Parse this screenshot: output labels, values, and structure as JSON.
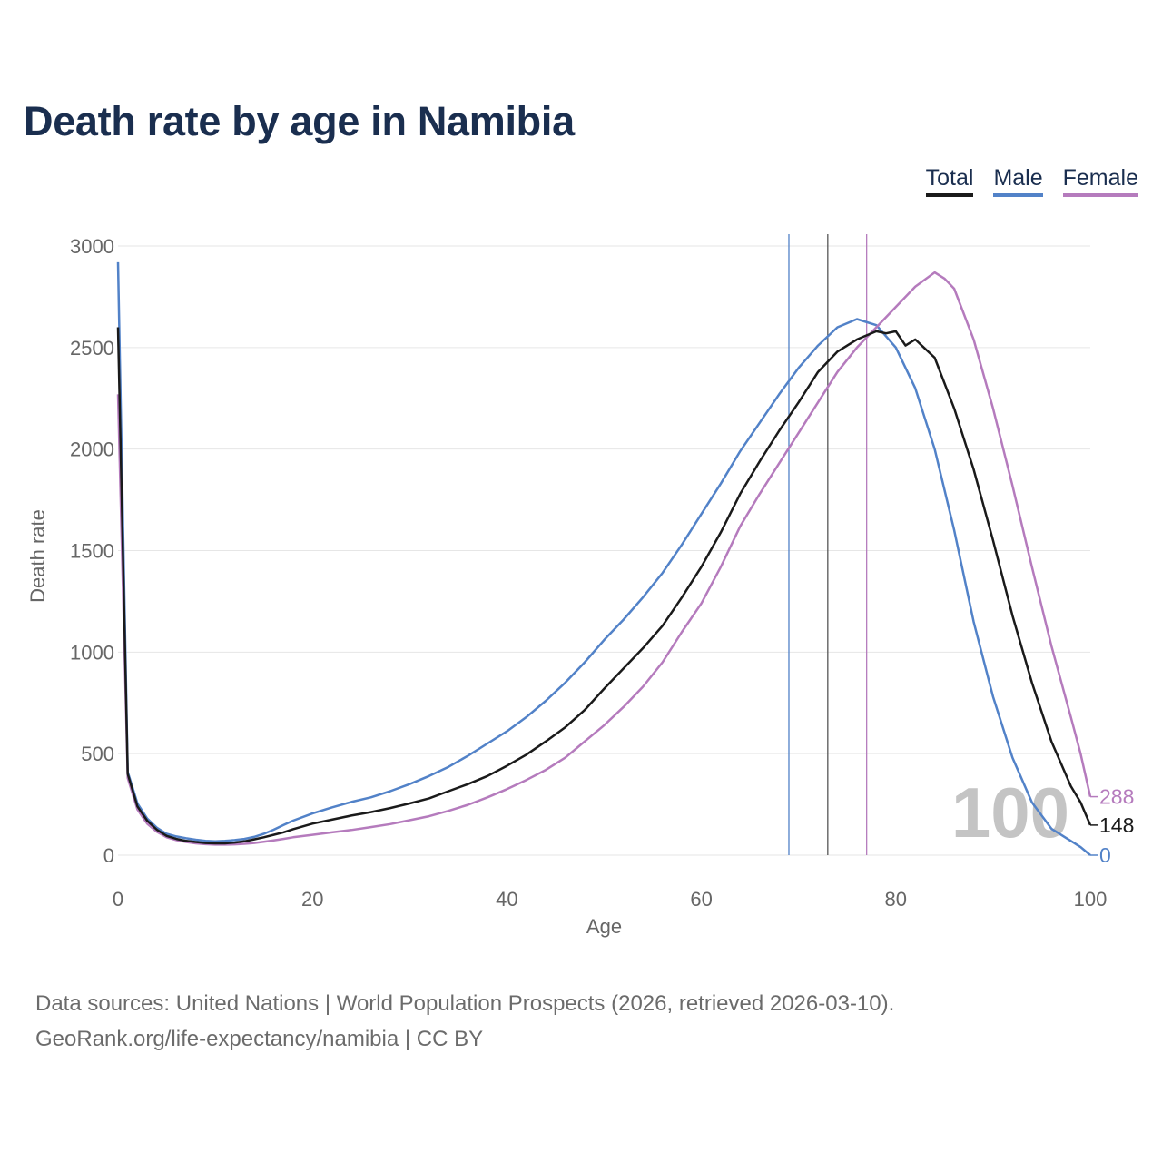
{
  "title": "Death rate by age in Namibia",
  "legend": [
    {
      "label": "Total",
      "color": "#1a1a1a"
    },
    {
      "label": "Male",
      "color": "#5282c8"
    },
    {
      "label": "Female",
      "color": "#b57bbd"
    }
  ],
  "footer": {
    "line1": "Data sources: United Nations | World Population Prospects (2026, retrieved 2026-03-10).",
    "line2": "GeoRank.org/life-expectancy/namibia | CC BY"
  },
  "chart_data": {
    "type": "line",
    "xlabel": "Age",
    "ylabel": "Death rate",
    "xlim": [
      0,
      100
    ],
    "ylim": [
      0,
      3000
    ],
    "xticks": [
      0,
      20,
      40,
      60,
      80,
      100
    ],
    "yticks": [
      0,
      500,
      1000,
      1500,
      2000,
      2500,
      3000
    ],
    "annotation": "100",
    "reference_lines": [
      {
        "name": "Male",
        "x": 69,
        "color": "#5282c8"
      },
      {
        "name": "Total",
        "x": 73,
        "color": "#555555"
      },
      {
        "name": "Female",
        "x": 77,
        "color": "#b57bbd"
      }
    ],
    "end_labels": [
      {
        "series": "Female",
        "value": "288"
      },
      {
        "series": "Total",
        "value": "148"
      },
      {
        "series": "Male",
        "value": "0"
      }
    ],
    "series": [
      {
        "name": "Total",
        "color": "#1a1a1a",
        "points": [
          [
            0,
            2600
          ],
          [
            1,
            400
          ],
          [
            2,
            240
          ],
          [
            3,
            170
          ],
          [
            4,
            125
          ],
          [
            5,
            95
          ],
          [
            6,
            80
          ],
          [
            7,
            70
          ],
          [
            8,
            65
          ],
          [
            9,
            60
          ],
          [
            10,
            58
          ],
          [
            11,
            58
          ],
          [
            12,
            62
          ],
          [
            13,
            68
          ],
          [
            14,
            78
          ],
          [
            15,
            88
          ],
          [
            16,
            100
          ],
          [
            17,
            112
          ],
          [
            18,
            128
          ],
          [
            20,
            155
          ],
          [
            22,
            175
          ],
          [
            24,
            195
          ],
          [
            26,
            212
          ],
          [
            28,
            232
          ],
          [
            30,
            255
          ],
          [
            32,
            280
          ],
          [
            34,
            315
          ],
          [
            36,
            350
          ],
          [
            38,
            390
          ],
          [
            40,
            440
          ],
          [
            42,
            495
          ],
          [
            44,
            560
          ],
          [
            46,
            630
          ],
          [
            48,
            715
          ],
          [
            50,
            820
          ],
          [
            52,
            920
          ],
          [
            54,
            1020
          ],
          [
            56,
            1130
          ],
          [
            58,
            1270
          ],
          [
            60,
            1420
          ],
          [
            62,
            1590
          ],
          [
            64,
            1780
          ],
          [
            66,
            1940
          ],
          [
            68,
            2090
          ],
          [
            70,
            2230
          ],
          [
            72,
            2380
          ],
          [
            74,
            2480
          ],
          [
            76,
            2540
          ],
          [
            78,
            2580
          ],
          [
            79,
            2570
          ],
          [
            80,
            2580
          ],
          [
            81,
            2510
          ],
          [
            82,
            2540
          ],
          [
            84,
            2450
          ],
          [
            86,
            2200
          ],
          [
            88,
            1900
          ],
          [
            90,
            1550
          ],
          [
            92,
            1180
          ],
          [
            94,
            850
          ],
          [
            96,
            560
          ],
          [
            98,
            340
          ],
          [
            99,
            260
          ],
          [
            100,
            148
          ]
        ]
      },
      {
        "name": "Male",
        "color": "#5282c8",
        "points": [
          [
            0,
            2920
          ],
          [
            1,
            410
          ],
          [
            2,
            255
          ],
          [
            3,
            180
          ],
          [
            4,
            135
          ],
          [
            5,
            105
          ],
          [
            6,
            92
          ],
          [
            7,
            83
          ],
          [
            8,
            76
          ],
          [
            9,
            70
          ],
          [
            10,
            68
          ],
          [
            11,
            70
          ],
          [
            12,
            74
          ],
          [
            13,
            80
          ],
          [
            14,
            90
          ],
          [
            15,
            105
          ],
          [
            16,
            125
          ],
          [
            17,
            148
          ],
          [
            18,
            170
          ],
          [
            20,
            205
          ],
          [
            22,
            235
          ],
          [
            24,
            262
          ],
          [
            26,
            285
          ],
          [
            28,
            315
          ],
          [
            30,
            350
          ],
          [
            32,
            390
          ],
          [
            34,
            435
          ],
          [
            36,
            490
          ],
          [
            38,
            550
          ],
          [
            40,
            610
          ],
          [
            42,
            680
          ],
          [
            44,
            760
          ],
          [
            46,
            850
          ],
          [
            48,
            950
          ],
          [
            50,
            1060
          ],
          [
            52,
            1160
          ],
          [
            54,
            1270
          ],
          [
            56,
            1390
          ],
          [
            58,
            1530
          ],
          [
            60,
            1680
          ],
          [
            62,
            1830
          ],
          [
            64,
            1990
          ],
          [
            66,
            2130
          ],
          [
            68,
            2270
          ],
          [
            70,
            2400
          ],
          [
            72,
            2510
          ],
          [
            74,
            2600
          ],
          [
            76,
            2640
          ],
          [
            78,
            2610
          ],
          [
            80,
            2500
          ],
          [
            82,
            2300
          ],
          [
            84,
            2000
          ],
          [
            86,
            1600
          ],
          [
            88,
            1150
          ],
          [
            90,
            780
          ],
          [
            92,
            480
          ],
          [
            94,
            260
          ],
          [
            96,
            130
          ],
          [
            98,
            70
          ],
          [
            99,
            40
          ],
          [
            100,
            0
          ]
        ]
      },
      {
        "name": "Female",
        "color": "#b57bbd",
        "points": [
          [
            0,
            2270
          ],
          [
            1,
            380
          ],
          [
            2,
            225
          ],
          [
            3,
            155
          ],
          [
            4,
            115
          ],
          [
            5,
            88
          ],
          [
            6,
            74
          ],
          [
            7,
            65
          ],
          [
            8,
            58
          ],
          [
            9,
            54
          ],
          [
            10,
            52
          ],
          [
            11,
            52
          ],
          [
            12,
            53
          ],
          [
            13,
            56
          ],
          [
            14,
            60
          ],
          [
            15,
            66
          ],
          [
            16,
            73
          ],
          [
            17,
            80
          ],
          [
            18,
            88
          ],
          [
            20,
            100
          ],
          [
            22,
            112
          ],
          [
            24,
            124
          ],
          [
            26,
            138
          ],
          [
            28,
            153
          ],
          [
            30,
            172
          ],
          [
            32,
            192
          ],
          [
            34,
            218
          ],
          [
            36,
            248
          ],
          [
            38,
            285
          ],
          [
            40,
            325
          ],
          [
            42,
            370
          ],
          [
            44,
            420
          ],
          [
            46,
            480
          ],
          [
            48,
            560
          ],
          [
            50,
            640
          ],
          [
            52,
            730
          ],
          [
            54,
            830
          ],
          [
            56,
            950
          ],
          [
            58,
            1100
          ],
          [
            60,
            1240
          ],
          [
            62,
            1420
          ],
          [
            64,
            1620
          ],
          [
            66,
            1780
          ],
          [
            68,
            1930
          ],
          [
            70,
            2080
          ],
          [
            72,
            2230
          ],
          [
            74,
            2380
          ],
          [
            76,
            2500
          ],
          [
            78,
            2600
          ],
          [
            80,
            2700
          ],
          [
            82,
            2800
          ],
          [
            84,
            2870
          ],
          [
            85,
            2840
          ],
          [
            86,
            2790
          ],
          [
            88,
            2540
          ],
          [
            90,
            2200
          ],
          [
            92,
            1820
          ],
          [
            94,
            1420
          ],
          [
            96,
            1030
          ],
          [
            98,
            680
          ],
          [
            99,
            500
          ],
          [
            100,
            288
          ]
        ]
      }
    ]
  }
}
